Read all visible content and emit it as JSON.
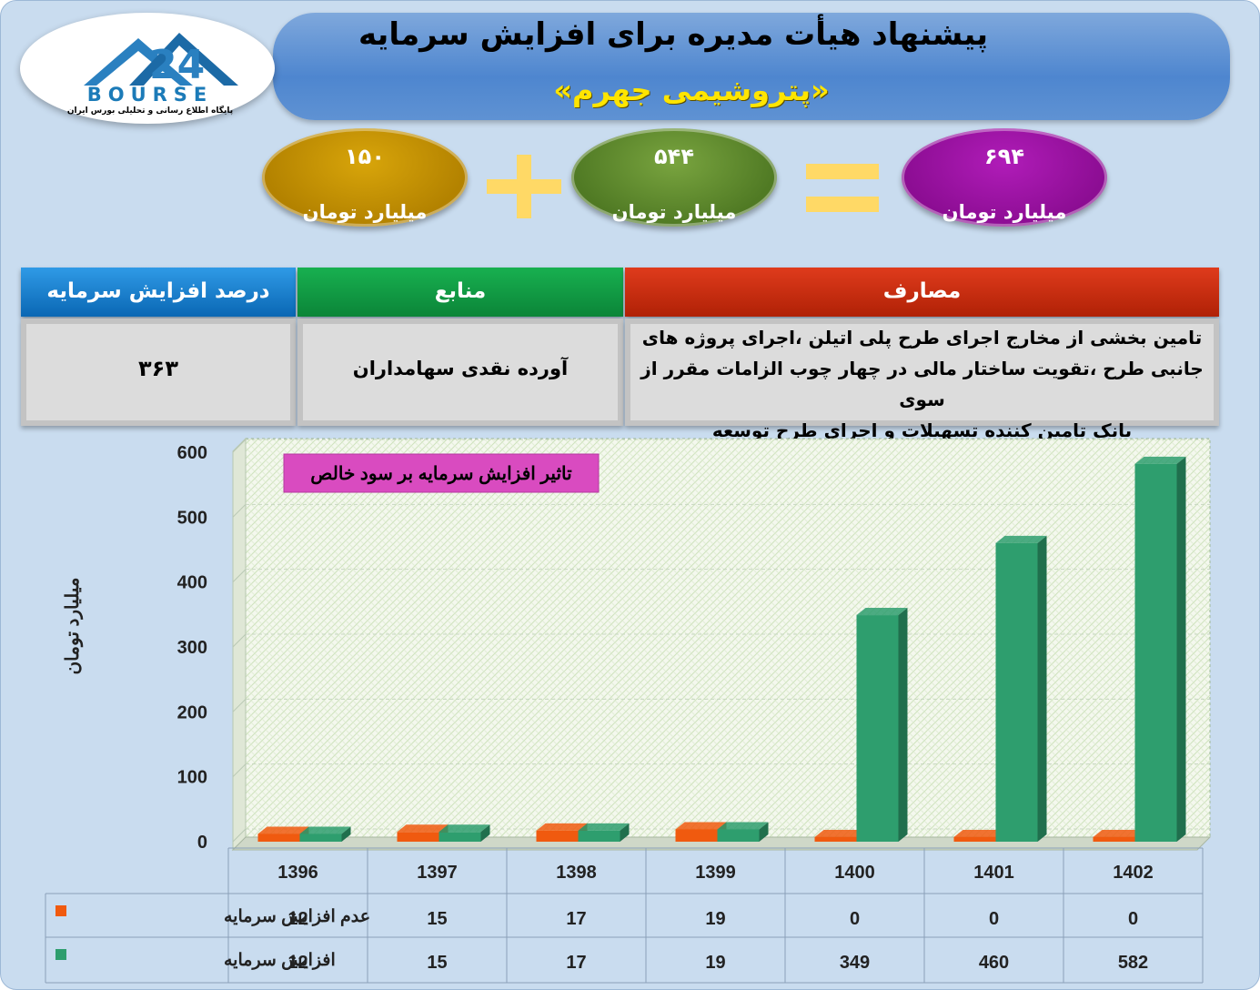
{
  "header": {
    "title": "پیشنهاد هیأت مدیره برای افزایش سرمایه",
    "company": "«پتروشیمی جهرم»",
    "logo_word": "BOURSE",
    "logo_number": "24",
    "logo_subtitle": "پایگاه اطلاع رسانی و تحلیلی بورس ایران"
  },
  "equation": {
    "term1": {
      "value": "۱۵۰",
      "unit": "میلیارد تومان"
    },
    "term2": {
      "value": "۵۴۴",
      "unit": "میلیارد تومان"
    },
    "total": {
      "value": "۶۹۴",
      "unit": "میلیارد تومان"
    }
  },
  "table": {
    "headers": {
      "percent": "درصد افزایش سرمایه",
      "sources": "منابع",
      "uses": "مصارف"
    },
    "percent_value": "۳۶۳",
    "sources_value": "آورده نقدی سهامداران",
    "uses_lines": [
      "تامین بخشی از مخارج اجرای طرح پلی اتیلن ،اجرای پروژه های",
      "جانبی طرح ،تقویت ساختار مالی در چهار چوب الزامات مقرر از سوی",
      "بانک تامین کننده تسهیلات و اجرای طرح توسعه"
    ]
  },
  "colors": {
    "series_no_increase": "#f05a0f",
    "series_increase": "#2e9e6e",
    "title_box": "#d94bc0"
  },
  "chart_data": {
    "type": "bar",
    "title": "تاثیر افزایش سرمایه بر سود خالص",
    "ylabel": "میلیارد تومان",
    "xlabel": "",
    "ylim": [
      0,
      600
    ],
    "yticks": [
      0,
      100,
      200,
      300,
      400,
      500,
      600
    ],
    "grid": true,
    "legend": "table-below",
    "categories": [
      "1396",
      "1397",
      "1398",
      "1399",
      "1400",
      "1401",
      "1402"
    ],
    "series": [
      {
        "name": "عدم افزایش سرمایه",
        "values": [
          12,
          15,
          17,
          19,
          0,
          0,
          0
        ]
      },
      {
        "name": "افزایش سرمایه",
        "values": [
          12,
          15,
          17,
          19,
          349,
          460,
          582
        ]
      }
    ]
  }
}
